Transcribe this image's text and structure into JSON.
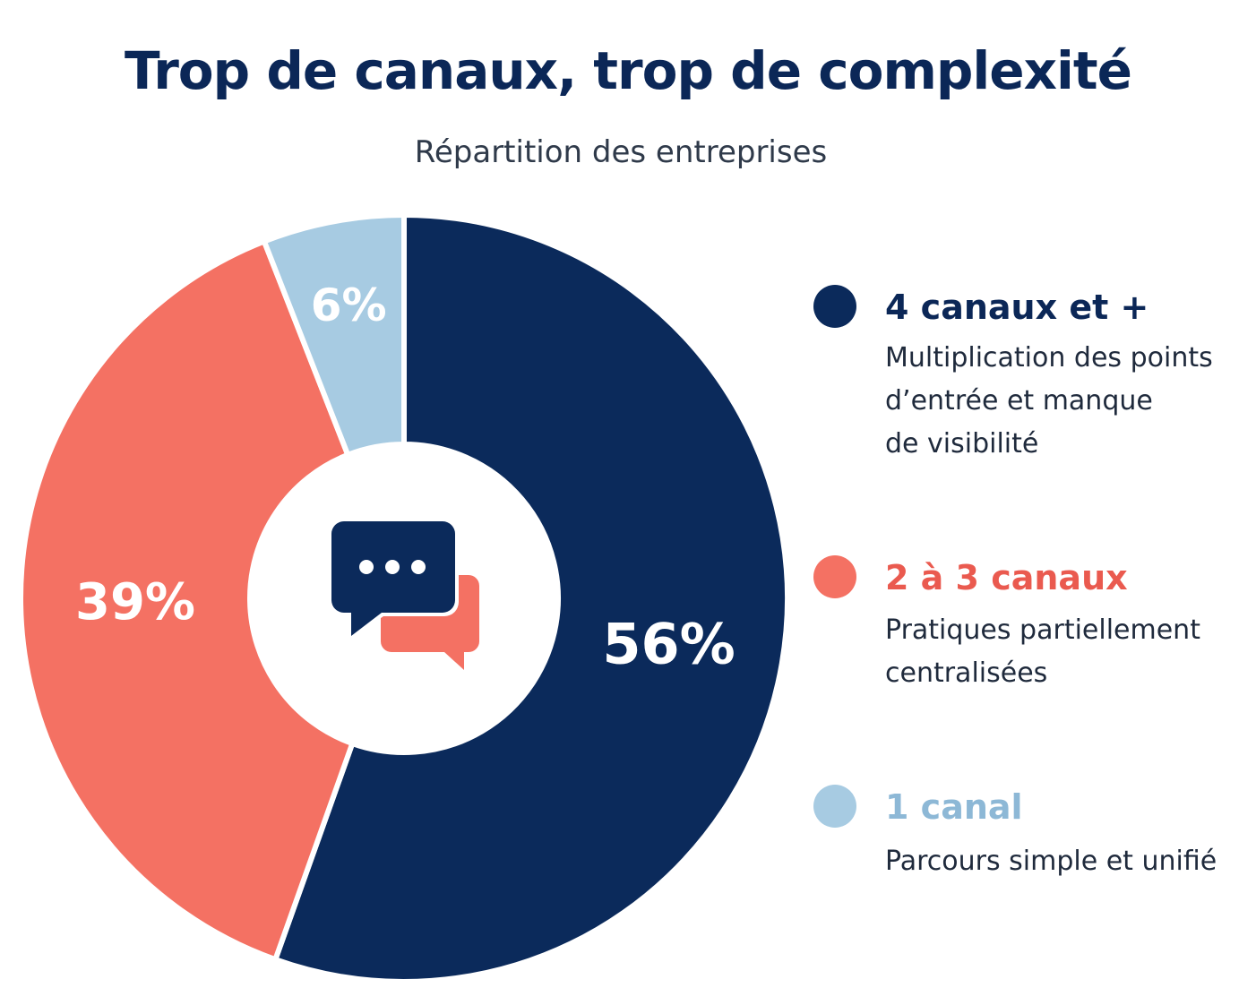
{
  "header": {
    "title": "Trop de canaux, trop de complexité",
    "subtitle": "Répartition des entreprises"
  },
  "chart_data": {
    "type": "pie",
    "variant": "donut",
    "title": "Trop de canaux, trop de complexité",
    "subtitle": "Répartition des entreprises",
    "center_icon": "chat-bubbles-icon",
    "legend_position": "right",
    "slices": [
      {
        "label": "4 canaux et +",
        "value": 56,
        "value_label": "56%",
        "color": "#0b2a5b",
        "description": [
          "Multiplication des points",
          "d’entrée et manque",
          "de visibilité"
        ]
      },
      {
        "label": "2 à 3 canaux",
        "value": 39,
        "value_label": "39%",
        "color": "#f47163",
        "description": [
          "Pratiques partiellement",
          "centralisées"
        ]
      },
      {
        "label": "1 canal",
        "value": 6,
        "value_label": "6%",
        "color": "#a7cbe2",
        "description": [
          "Parcours simple et unifié"
        ]
      }
    ]
  },
  "colors": {
    "navy": "#0b2a5b",
    "coral": "#f47163",
    "light_blue": "#a7cbe2",
    "legend_title_coral": "#ea5a4f",
    "legend_title_light_blue": "#8db8d6"
  }
}
